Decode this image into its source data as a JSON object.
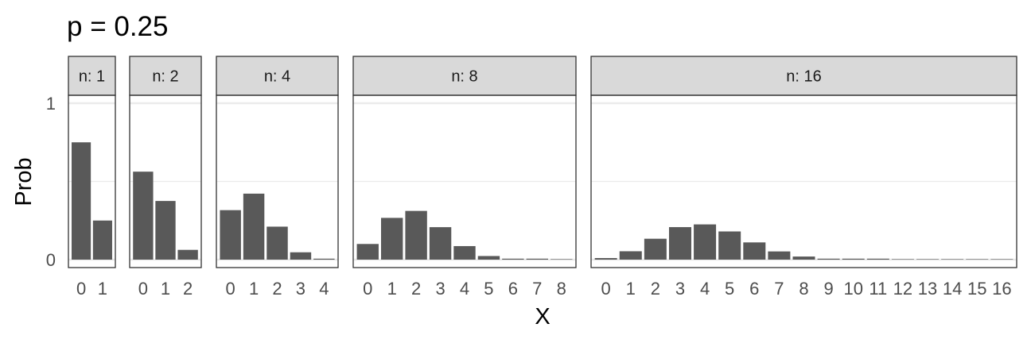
{
  "title": "p = 0.25",
  "chart_data": {
    "type": "bar",
    "title": "p = 0.25",
    "xlabel": "X",
    "ylabel": "Prob",
    "ylim": [
      0,
      1
    ],
    "y_ticks": [
      "0",
      "1"
    ],
    "grid": true,
    "bar_color": "#595959",
    "strip_color": "#d9d9d9",
    "panels": [
      {
        "label": "n: 1",
        "categories": [
          "0",
          "1"
        ],
        "values": [
          0.75,
          0.25
        ]
      },
      {
        "label": "n: 2",
        "categories": [
          "0",
          "1",
          "2"
        ],
        "values": [
          0.5625,
          0.375,
          0.0625
        ]
      },
      {
        "label": "n: 4",
        "categories": [
          "0",
          "1",
          "2",
          "3",
          "4"
        ],
        "values": [
          0.3164,
          0.4219,
          0.2109,
          0.0469,
          0.0039
        ]
      },
      {
        "label": "n: 8",
        "categories": [
          "0",
          "1",
          "2",
          "3",
          "4",
          "5",
          "6",
          "7",
          "8"
        ],
        "values": [
          0.1001,
          0.267,
          0.3115,
          0.2076,
          0.0865,
          0.0231,
          0.0038,
          0.0004,
          0.0
        ]
      },
      {
        "label": "n: 16",
        "categories": [
          "0",
          "1",
          "2",
          "3",
          "4",
          "5",
          "6",
          "7",
          "8",
          "9",
          "10",
          "11",
          "12",
          "13",
          "14",
          "15",
          "16"
        ],
        "values": [
          0.01,
          0.0535,
          0.1336,
          0.2079,
          0.2252,
          0.1802,
          0.1101,
          0.0524,
          0.0197,
          0.0058,
          0.0014,
          0.0002,
          0.0,
          0.0,
          0.0,
          0.0,
          0.0
        ]
      }
    ]
  }
}
